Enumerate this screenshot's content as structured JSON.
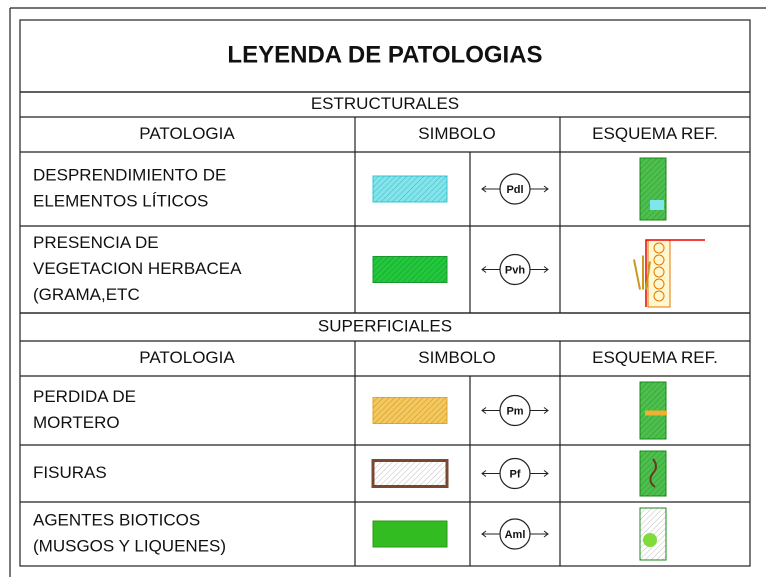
{
  "title": "LEYENDA DE PATOLOGIAS",
  "sections": [
    {
      "heading": "ESTRUCTURALES",
      "columns": [
        "PATOLOGIA",
        "SIMBOLO",
        "ESQUEMA REF."
      ],
      "rows": [
        {
          "name": [
            "DESPRENDIMIENTO DE",
            " ELEMENTOS LÍTICOS"
          ],
          "code": "Pdl"
        },
        {
          "name": [
            "PRESENCIA DE",
            "VEGETACION HERBACEA",
            "(GRAMA,ETC"
          ],
          "code": "Pvh"
        }
      ]
    },
    {
      "heading": "SUPERFICIALES",
      "columns": [
        "PATOLOGIA",
        "SIMBOLO",
        "ESQUEMA REF."
      ],
      "rows": [
        {
          "name": [
            "PERDIDA DE",
            " MORTERO"
          ],
          "code": "Pm"
        },
        {
          "name": [
            "FISURAS"
          ],
          "code": "Pf"
        },
        {
          "name": [
            " AGENTES BIOTICOS",
            "(MUSGOS Y LIQUENES)"
          ],
          "code": "Aml"
        }
      ]
    }
  ]
}
